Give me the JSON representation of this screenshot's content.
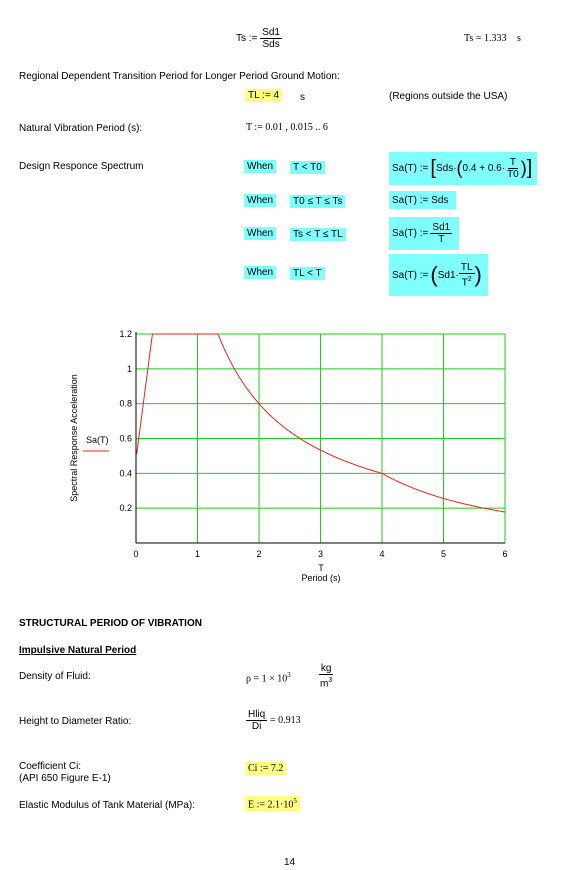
{
  "ts_formula": {
    "lhs": "Ts :=",
    "num": "Sd1",
    "den": "Sds",
    "result": "Ts = 1.333",
    "unit": "s"
  },
  "regional_heading": "Regional Dependent Transition Period for Longer Period Ground Motion:",
  "tl": {
    "expr": "TL := 4",
    "unit": "s",
    "note": "(Regions outside the USA)"
  },
  "natural_period": {
    "label": "Natural Vibration Period (s):",
    "expr": "T := 0.01 , 0.015 .. 6"
  },
  "spectrum": {
    "label": "Design Responce Spectrum",
    "cases": [
      {
        "when": "When",
        "cond": "T < T0",
        "formula": "Sa(T) := [Sds·(0.4 + 0.6·T/T0)]"
      },
      {
        "when": "When",
        "cond": "T0 ≤ T ≤ Ts",
        "formula": "Sa(T) := Sds"
      },
      {
        "when": "When",
        "cond": "Ts < T ≤ TL",
        "formula": "Sa(T) := Sd1/T"
      },
      {
        "when": "When",
        "cond": "TL < T",
        "formula": "Sa(T) := (Sd1·TL/T²)"
      }
    ],
    "parts": {
      "sa": "Sa(T) :=",
      "sds": "Sds·",
      "lin": "0.4 + 0.6·",
      "t": "T",
      "t0": "T0",
      "sd1": "Sd1",
      "sd1dot": "Sd1·",
      "tl": "TL",
      "tsq": "T",
      "sq": "2"
    }
  },
  "chart_data": {
    "type": "line",
    "xlabel_var": "T",
    "xlabel": "Period (s)",
    "ylabel": "Spectral Response Acceleration",
    "legend": "Sa(T)",
    "xlim": [
      0,
      6
    ],
    "ylim": [
      0,
      1.2
    ],
    "x_ticks": [
      "0",
      "1",
      "2",
      "3",
      "4",
      "5",
      "6"
    ],
    "y_ticks": [
      "0.2",
      "0.4",
      "0.6",
      "0.8",
      "1",
      "1.2"
    ],
    "grid": true,
    "series_color": "#e8231f",
    "grid_color": "#22c922",
    "params": {
      "Sds": 1.2,
      "Sd1": 1.6,
      "T0": 0.267,
      "Ts": 1.333,
      "TL": 4
    }
  },
  "structural_heading": "STRUCTURAL PERIOD OF VIBRATION",
  "impulsive_heading": "Impulsive Natural Period",
  "density": {
    "label": "Density of Fluid:",
    "expr": "ρ = 1 × 10",
    "exp": "3",
    "unit_num": "kg",
    "unit_den": "m",
    "unit_exp": "3"
  },
  "ratio": {
    "label": "Height to Diameter Ratio:",
    "num": "Hliq",
    "den": "Di",
    "result": "= 0.913"
  },
  "ci": {
    "label1": "Coefficient Ci:",
    "label2": "(API 650 Figure E-1)",
    "expr": "Ci := 7.2"
  },
  "modulus": {
    "label": "Elastic Modulus of Tank Material (MPa):",
    "expr": "E := 2.1·10",
    "exp": "5"
  },
  "page_number": "14"
}
